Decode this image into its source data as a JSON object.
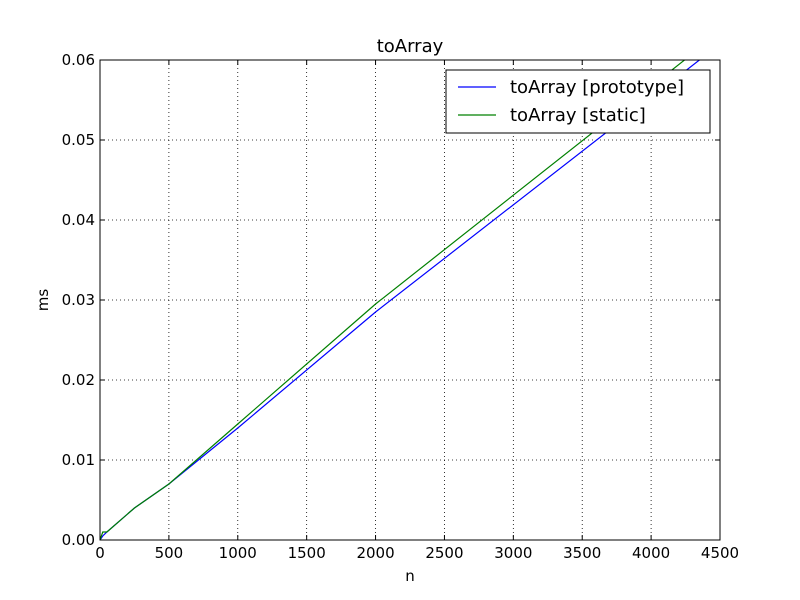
{
  "chart_data": {
    "type": "line",
    "title": "toArray",
    "xlabel": "n",
    "ylabel": "ms",
    "xlim": [
      0,
      4500
    ],
    "ylim": [
      0,
      0.06
    ],
    "xticks": [
      0,
      500,
      1000,
      1500,
      2000,
      2500,
      3000,
      3500,
      4000,
      4500
    ],
    "yticks": [
      0.0,
      0.01,
      0.02,
      0.03,
      0.04,
      0.05,
      0.06
    ],
    "xtick_labels": [
      "0",
      "500",
      "1000",
      "1500",
      "2000",
      "2500",
      "3000",
      "3500",
      "4000",
      "4500"
    ],
    "ytick_labels": [
      "0.00",
      "0.01",
      "0.02",
      "0.03",
      "0.04",
      "0.05",
      "0.06"
    ],
    "grid": true,
    "legend_position": "top-right",
    "series": [
      {
        "name": "toArray [prototype]",
        "color": "#0000ff",
        "x": [
          0,
          20,
          50,
          250,
          500,
          1000,
          2000,
          4500
        ],
        "y": [
          0.0,
          0.0005,
          0.001,
          0.004,
          0.007,
          0.014,
          0.0285,
          0.062
        ]
      },
      {
        "name": "toArray [static]",
        "color": "#008000",
        "x": [
          0,
          20,
          50,
          250,
          500,
          1000,
          2000,
          4500
        ],
        "y": [
          0.0,
          0.001,
          0.001,
          0.004,
          0.007,
          0.0145,
          0.0295,
          0.0635
        ]
      }
    ]
  }
}
